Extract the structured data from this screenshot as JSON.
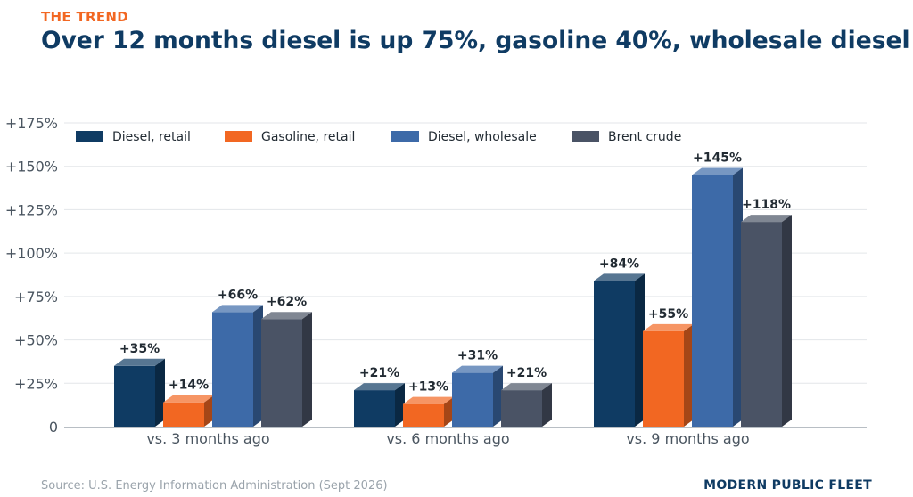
{
  "header": {
    "kicker": "THE TREND",
    "title": "Over 12 months diesel is up 75%, gasoline 40%, wholesale diesel"
  },
  "footer": {
    "source": "Source: U.S. Energy Information Administration (Sept 2026)",
    "brand": "MODERN PUBLIC FLEET"
  },
  "colors": {
    "kicker": "#f26722",
    "title": "#0f3b63",
    "brand": "#0f3b63",
    "axis_text": "#4a5560",
    "grid": "#e3e6e9"
  },
  "chart_data": {
    "type": "bar",
    "categories": [
      "vs. 3 months ago",
      "vs. 6 months ago",
      "vs. 9 months ago"
    ],
    "series": [
      {
        "name": "Diesel, retail",
        "values": [
          35,
          21,
          84
        ],
        "labels": [
          "+35%",
          "+21%",
          "+84%"
        ],
        "color": "#0f3b63"
      },
      {
        "name": "Gasoline, retail",
        "values": [
          14,
          13,
          55
        ],
        "labels": [
          "+14%",
          "+13%",
          "+55%"
        ],
        "color": "#f26722"
      },
      {
        "name": "Diesel, wholesale",
        "values": [
          66,
          31,
          145
        ],
        "labels": [
          "+66%",
          "+31%",
          "+145%"
        ],
        "color": "#3d6aa8"
      },
      {
        "name": "Brent crude",
        "values": [
          62,
          21,
          118
        ],
        "labels": [
          "+62%",
          "+21%",
          "+118%"
        ],
        "color": "#4a5365"
      }
    ],
    "y_ticks": [
      0,
      25,
      50,
      75,
      100,
      125,
      150,
      175
    ],
    "y_tick_labels": [
      "0",
      "+25%",
      "+50%",
      "+75%",
      "+100%",
      "+125%",
      "+150%",
      "+175%"
    ],
    "ylim": [
      0,
      175
    ],
    "grid": true,
    "legend_position": "top-left",
    "style": "3d"
  }
}
